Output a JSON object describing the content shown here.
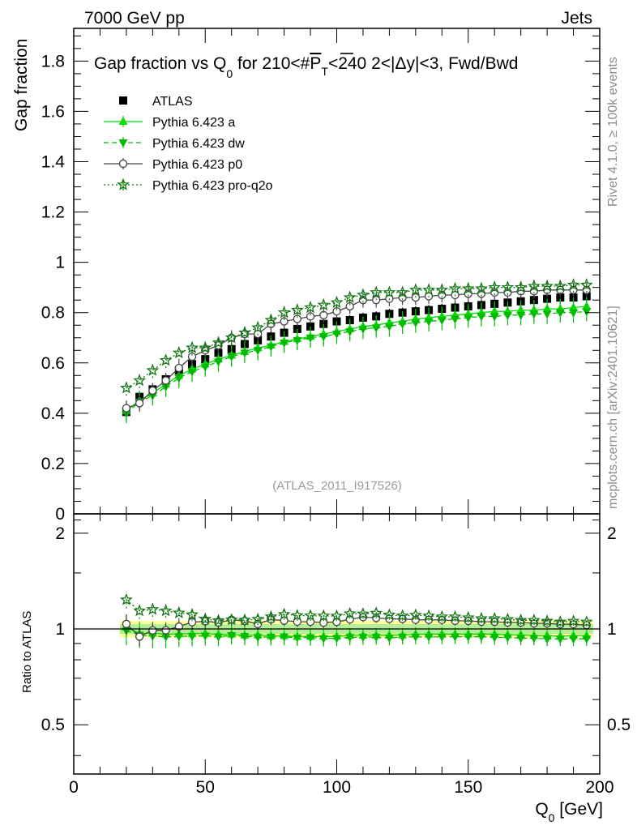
{
  "header": {
    "left": "7000 GeV pp",
    "right": "Jets"
  },
  "side_labels": {
    "top": "Rivet 4.1.0, ≥ 100k events",
    "bottom": "mcplots.cern.ch [arXiv:2401.10621]"
  },
  "chart_data": {
    "type": "scatter",
    "title_parts": {
      "pre": "Gap fraction vs Q",
      "sub": "0",
      "mid": " for 210<#",
      "p": "P",
      "psub": "T",
      "post": "<240  2<|Δy|<3, Fwd/Bwd"
    },
    "watermark": "(ATLAS_2011_I917526)",
    "ylabel": "Gap fraction",
    "ratio_ylabel": "Ratio to ATLAS",
    "xlabel_parts": {
      "main": "Q",
      "sub": "0",
      "unit": " [GeV]"
    },
    "xlim": [
      0,
      200
    ],
    "ylim": [
      0,
      1.93
    ],
    "ratio_ylim": [
      0.35,
      2.3
    ],
    "x_ticks": [
      "0",
      "50",
      "100",
      "150",
      "200"
    ],
    "y_ticks": [
      "0",
      "0.2",
      "0.4",
      "0.6",
      "0.8",
      "1",
      "1.2",
      "1.4",
      "1.6",
      "1.8"
    ],
    "ratio_y_ticks": [
      "0.5",
      "1",
      "2"
    ],
    "x": [
      20,
      25,
      30,
      35,
      40,
      45,
      50,
      55,
      60,
      65,
      70,
      75,
      80,
      85,
      90,
      95,
      100,
      105,
      110,
      115,
      120,
      125,
      130,
      135,
      140,
      145,
      150,
      155,
      160,
      165,
      170,
      175,
      180,
      185,
      190,
      195
    ],
    "series": [
      {
        "name": "ATLAS",
        "style": "data",
        "color": "#000000",
        "values": [
          0.405,
          0.465,
          0.495,
          0.535,
          0.57,
          0.595,
          0.615,
          0.64,
          0.655,
          0.675,
          0.69,
          0.705,
          0.72,
          0.735,
          0.745,
          0.755,
          0.765,
          0.77,
          0.78,
          0.785,
          0.795,
          0.8,
          0.805,
          0.81,
          0.815,
          0.82,
          0.825,
          0.83,
          0.835,
          0.84,
          0.845,
          0.85,
          0.855,
          0.86,
          0.86,
          0.865
        ],
        "err": [
          0.02,
          0.02,
          0.02,
          0.02,
          0.02,
          0.02,
          0.02,
          0.02,
          0.02,
          0.02,
          0.02,
          0.02,
          0.02,
          0.02,
          0.02,
          0.02,
          0.02,
          0.02,
          0.02,
          0.02,
          0.02,
          0.02,
          0.02,
          0.02,
          0.02,
          0.02,
          0.02,
          0.02,
          0.02,
          0.02,
          0.02,
          0.02,
          0.02,
          0.02,
          0.02,
          0.02
        ]
      },
      {
        "name": "Pythia 6.423 a",
        "style": "solid",
        "marker": "triangle-up",
        "color": "#00dd00",
        "values": [
          0.41,
          0.45,
          0.48,
          0.515,
          0.55,
          0.575,
          0.595,
          0.615,
          0.63,
          0.645,
          0.66,
          0.67,
          0.685,
          0.695,
          0.705,
          0.715,
          0.725,
          0.735,
          0.745,
          0.75,
          0.76,
          0.765,
          0.775,
          0.78,
          0.785,
          0.79,
          0.795,
          0.8,
          0.805,
          0.805,
          0.81,
          0.81,
          0.815,
          0.815,
          0.82,
          0.825
        ],
        "err": [
          0.04,
          0.04,
          0.04,
          0.04,
          0.04,
          0.04,
          0.04,
          0.04,
          0.04,
          0.04,
          0.04,
          0.04,
          0.04,
          0.04,
          0.04,
          0.04,
          0.04,
          0.04,
          0.04,
          0.04,
          0.04,
          0.04,
          0.04,
          0.04,
          0.04,
          0.04,
          0.04,
          0.04,
          0.04,
          0.04,
          0.04,
          0.04,
          0.04,
          0.04,
          0.04,
          0.04
        ]
      },
      {
        "name": "Pythia 6.423 dw",
        "style": "dashed",
        "marker": "triangle-down",
        "color": "#00bb00",
        "values": [
          0.4,
          0.445,
          0.47,
          0.505,
          0.54,
          0.565,
          0.585,
          0.605,
          0.625,
          0.64,
          0.65,
          0.665,
          0.68,
          0.69,
          0.7,
          0.705,
          0.715,
          0.725,
          0.735,
          0.74,
          0.745,
          0.755,
          0.76,
          0.765,
          0.77,
          0.775,
          0.78,
          0.785,
          0.785,
          0.79,
          0.79,
          0.795,
          0.795,
          0.8,
          0.8,
          0.805
        ],
        "err": [
          0.04,
          0.04,
          0.04,
          0.04,
          0.04,
          0.04,
          0.04,
          0.04,
          0.04,
          0.04,
          0.04,
          0.04,
          0.04,
          0.04,
          0.04,
          0.04,
          0.04,
          0.04,
          0.04,
          0.04,
          0.04,
          0.04,
          0.04,
          0.04,
          0.04,
          0.04,
          0.04,
          0.04,
          0.04,
          0.04,
          0.04,
          0.04,
          0.04,
          0.04,
          0.04,
          0.04
        ]
      },
      {
        "name": "Pythia 6.423 p0",
        "style": "solid",
        "marker": "circle-open",
        "color": "#444444",
        "values": [
          0.42,
          0.44,
          0.49,
          0.53,
          0.58,
          0.625,
          0.65,
          0.67,
          0.7,
          0.715,
          0.715,
          0.755,
          0.765,
          0.775,
          0.785,
          0.79,
          0.805,
          0.825,
          0.85,
          0.85,
          0.855,
          0.86,
          0.86,
          0.865,
          0.87,
          0.87,
          0.875,
          0.875,
          0.88,
          0.88,
          0.885,
          0.885,
          0.89,
          0.89,
          0.89,
          0.89
        ],
        "err": [
          0.03,
          0.03,
          0.03,
          0.03,
          0.03,
          0.03,
          0.03,
          0.03,
          0.03,
          0.03,
          0.03,
          0.03,
          0.03,
          0.03,
          0.03,
          0.03,
          0.03,
          0.03,
          0.03,
          0.03,
          0.03,
          0.03,
          0.03,
          0.03,
          0.03,
          0.03,
          0.03,
          0.03,
          0.03,
          0.03,
          0.03,
          0.03,
          0.03,
          0.03,
          0.03,
          0.03
        ]
      },
      {
        "name": "Pythia 6.423 pro-q2o",
        "style": "dotted",
        "marker": "star",
        "color": "#117711",
        "values": [
          0.5,
          0.53,
          0.57,
          0.61,
          0.64,
          0.66,
          0.66,
          0.68,
          0.7,
          0.72,
          0.74,
          0.77,
          0.8,
          0.81,
          0.82,
          0.83,
          0.84,
          0.86,
          0.87,
          0.88,
          0.88,
          0.88,
          0.89,
          0.89,
          0.89,
          0.895,
          0.895,
          0.895,
          0.9,
          0.9,
          0.9,
          0.905,
          0.905,
          0.905,
          0.91,
          0.91
        ],
        "err": [
          0.03,
          0.03,
          0.03,
          0.03,
          0.03,
          0.03,
          0.03,
          0.03,
          0.03,
          0.03,
          0.03,
          0.03,
          0.03,
          0.03,
          0.03,
          0.03,
          0.03,
          0.03,
          0.03,
          0.03,
          0.03,
          0.03,
          0.03,
          0.03,
          0.03,
          0.03,
          0.03,
          0.03,
          0.03,
          0.03,
          0.03,
          0.03,
          0.03,
          0.03,
          0.03,
          0.03
        ]
      }
    ]
  }
}
